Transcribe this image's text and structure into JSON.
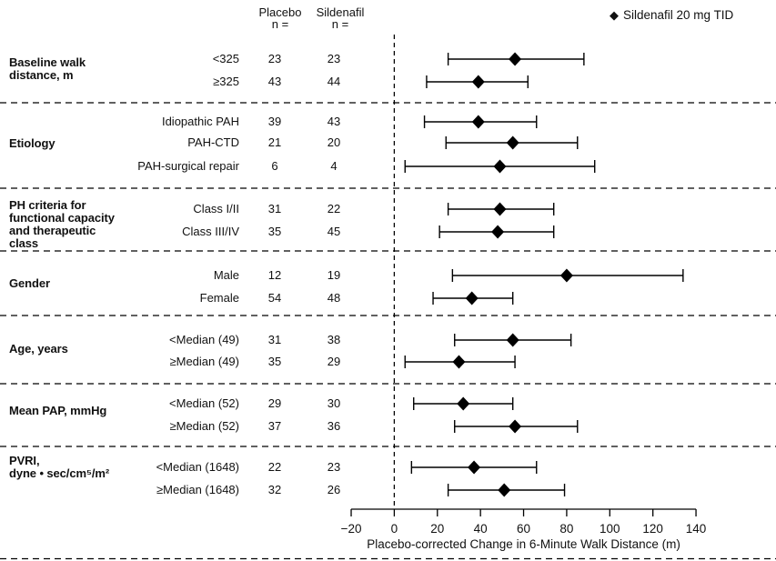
{
  "header": {
    "placebo": "Placebo\nn =",
    "sildenafil": "Sildenafil\nn ="
  },
  "legend": {
    "glyph": "◆",
    "label": "Sildenafil 20 mg TID"
  },
  "colors": {
    "ink": "#000000",
    "background": "#ffffff"
  },
  "chart_data": {
    "type": "forest",
    "title": "",
    "xlabel": "Placebo-corrected Change in 6-Minute Walk Distance (m)",
    "xlim": [
      -20,
      140
    ],
    "x_ticks": [
      -20,
      0,
      20,
      40,
      60,
      80,
      100,
      120,
      140
    ],
    "x_tick_labels": [
      "−20",
      "0",
      "20",
      "40",
      "60",
      "80",
      "100",
      "120",
      "140"
    ],
    "zero_reference_line": 0,
    "grid": "off",
    "legend_position": "top-right",
    "columns": [
      "Placebo n =",
      "Sildenafil n ="
    ],
    "marker": "filled-diamond",
    "groups": [
      {
        "label": "Baseline walk\ndistance, m",
        "rows": [
          {
            "subgroup": "<325",
            "placebo_n": 23,
            "sildenafil_n": 23,
            "estimate": 56,
            "ci": [
              25,
              88
            ]
          },
          {
            "subgroup": "≥325",
            "placebo_n": 43,
            "sildenafil_n": 44,
            "estimate": 39,
            "ci": [
              15,
              62
            ]
          }
        ]
      },
      {
        "label": "Etiology",
        "rows": [
          {
            "subgroup": "Idiopathic PAH",
            "placebo_n": 39,
            "sildenafil_n": 43,
            "estimate": 39,
            "ci": [
              14,
              66
            ]
          },
          {
            "subgroup": "PAH-CTD",
            "placebo_n": 21,
            "sildenafil_n": 20,
            "estimate": 55,
            "ci": [
              24,
              85
            ]
          },
          {
            "subgroup": "PAH-surgical repair",
            "placebo_n": 6,
            "sildenafil_n": 4,
            "estimate": 49,
            "ci": [
              5,
              93
            ]
          }
        ]
      },
      {
        "label": "PH criteria for\nfunctional capacity\nand therapeutic\nclass",
        "rows": [
          {
            "subgroup": "Class I/II",
            "placebo_n": 31,
            "sildenafil_n": 22,
            "estimate": 49,
            "ci": [
              25,
              74
            ]
          },
          {
            "subgroup": "Class III/IV",
            "placebo_n": 35,
            "sildenafil_n": 45,
            "estimate": 48,
            "ci": [
              21,
              74
            ]
          }
        ]
      },
      {
        "label": "Gender",
        "rows": [
          {
            "subgroup": "Male",
            "placebo_n": 12,
            "sildenafil_n": 19,
            "estimate": 80,
            "ci": [
              27,
              134
            ]
          },
          {
            "subgroup": "Female",
            "placebo_n": 54,
            "sildenafil_n": 48,
            "estimate": 36,
            "ci": [
              18,
              55
            ]
          }
        ]
      },
      {
        "label": "Age, years",
        "rows": [
          {
            "subgroup": "<Median (49)",
            "placebo_n": 31,
            "sildenafil_n": 38,
            "estimate": 55,
            "ci": [
              28,
              82
            ]
          },
          {
            "subgroup": "≥Median (49)",
            "placebo_n": 35,
            "sildenafil_n": 29,
            "estimate": 30,
            "ci": [
              5,
              56
            ]
          }
        ]
      },
      {
        "label": "Mean PAP, mmHg",
        "rows": [
          {
            "subgroup": "<Median (52)",
            "placebo_n": 29,
            "sildenafil_n": 30,
            "estimate": 32,
            "ci": [
              9,
              55
            ]
          },
          {
            "subgroup": "≥Median (52)",
            "placebo_n": 37,
            "sildenafil_n": 36,
            "estimate": 56,
            "ci": [
              28,
              85
            ]
          }
        ]
      },
      {
        "label": "PVRI,\ndyne • sec/cm⁵/m²",
        "rows": [
          {
            "subgroup": "<Median (1648)",
            "placebo_n": 22,
            "sildenafil_n": 23,
            "estimate": 37,
            "ci": [
              8,
              66
            ]
          },
          {
            "subgroup": "≥Median (1648)",
            "placebo_n": 32,
            "sildenafil_n": 26,
            "estimate": 51,
            "ci": [
              25,
              79
            ]
          }
        ]
      }
    ]
  }
}
